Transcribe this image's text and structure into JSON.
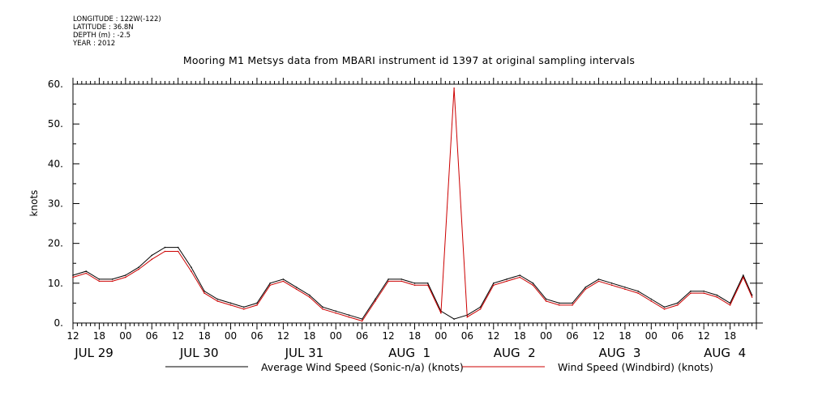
{
  "meta": {
    "longitude": "LONGITUDE : 122W(-122)",
    "latitude": "LATITUDE : 36.8N",
    "depth": "DEPTH (m) : -2.5",
    "year": "YEAR : 2012"
  },
  "title": "Mooring M1 Metsys data from MBARI instrument id 1397 at original sampling intervals",
  "legend": {
    "series0": "Average Wind Speed (Sonic-n/a) (knots)",
    "series1": "Wind Speed (Windbird) (knots)"
  },
  "colors": {
    "series0": "#000000",
    "series1": "#cc0000"
  },
  "chart_data": {
    "type": "line",
    "ylabel": "knots",
    "ylim": [
      0,
      60
    ],
    "yticks": [
      0,
      10,
      20,
      30,
      40,
      50,
      60
    ],
    "xlim_hours": [
      0,
      156
    ],
    "hour_tick_labels": [
      "12",
      "18",
      "00",
      "06",
      "12",
      "18",
      "00",
      "06",
      "12",
      "18",
      "00",
      "06",
      "12",
      "18",
      "00",
      "06",
      "12",
      "18",
      "00",
      "06",
      "12",
      "18",
      "00",
      "06",
      "12",
      "18"
    ],
    "date_labels": [
      "JUL 29",
      "JUL 30",
      "JUL 31",
      "AUG  1",
      "AUG  2",
      "AUG  3",
      "AUG  4"
    ],
    "x_hours": [
      0,
      3,
      6,
      9,
      12,
      15,
      18,
      21,
      24,
      27,
      30,
      33,
      36,
      39,
      42,
      45,
      48,
      51,
      54,
      57,
      60,
      63,
      66,
      69,
      72,
      75,
      78,
      81,
      84,
      87,
      90,
      93,
      96,
      99,
      102,
      105,
      108,
      111,
      114,
      117,
      120,
      123,
      126,
      129,
      132,
      135,
      138,
      141,
      144,
      147,
      150,
      153,
      155
    ],
    "series": [
      {
        "name": "Average Wind Speed (Sonic-n/a) (knots)",
        "values": [
          12,
          13,
          11,
          11,
          12,
          14,
          17,
          19,
          19,
          14,
          8,
          6,
          5,
          4,
          5,
          10,
          11,
          9,
          7,
          4,
          3,
          2,
          1,
          6,
          11,
          11,
          10,
          10,
          3,
          1,
          2,
          4,
          10,
          11,
          12,
          10,
          6,
          5,
          5,
          9,
          11,
          10,
          9,
          8,
          6,
          4,
          5,
          8,
          8,
          7,
          5,
          12,
          7
        ]
      },
      {
        "name": "Wind Speed (Windbird) (knots)",
        "values": [
          11.5,
          12.5,
          10.5,
          10.5,
          11.5,
          13.5,
          16,
          18,
          18,
          13,
          7.5,
          5.5,
          4.5,
          3.5,
          4.5,
          9.5,
          10.5,
          8.5,
          6.5,
          3.5,
          2.5,
          1.5,
          0.5,
          5.5,
          10.5,
          10.5,
          9.5,
          9.5,
          2.5,
          59,
          1.5,
          3.5,
          9.5,
          10.5,
          11.5,
          9.5,
          5.5,
          4.5,
          4.5,
          8.5,
          10.5,
          9.5,
          8.5,
          7.5,
          5.5,
          3.5,
          4.5,
          7.5,
          7.5,
          6.5,
          4.5,
          11.5,
          6.5
        ]
      }
    ]
  }
}
